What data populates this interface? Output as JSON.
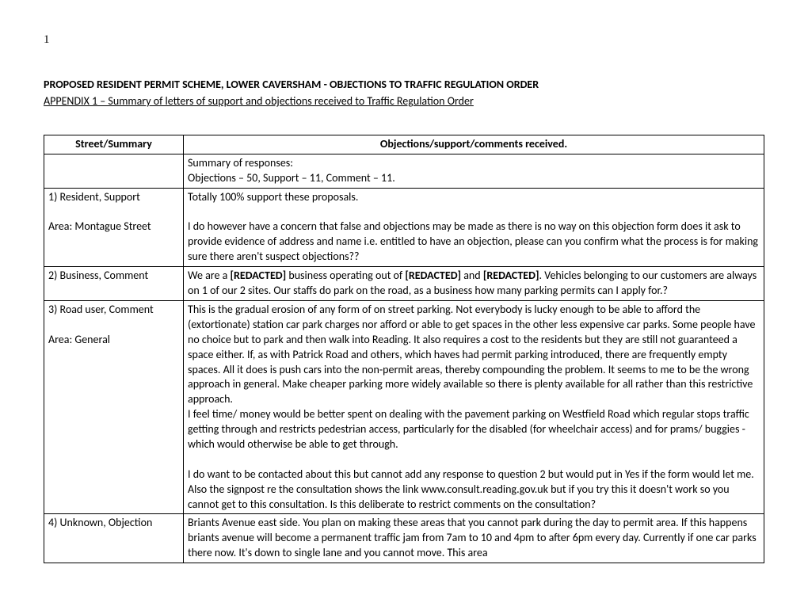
{
  "page_number": "1",
  "title": "PROPOSED RESIDENT PERMIT SCHEME, LOWER CAVERSHAM  - OBJECTIONS TO TRAFFIC REGULATION ORDER",
  "subtitle": "APPENDIX 1 – Summary of letters of support and objections received to Traffic Regulation Order",
  "table": {
    "headers": {
      "left": "Street/Summary",
      "right": "Objections/support/comments received."
    },
    "rows": [
      {
        "left": "",
        "right_p1": "Summary of responses:",
        "right_p2": "Objections – 50, Support – 11, Comment – 11."
      },
      {
        "left_p1": "1) Resident, Support",
        "left_p2": "Area: Montague Street",
        "right_p1": "Totally 100% support these proposals.",
        "right_p2": "I do however have a concern that false and objections may be made as there is no way on this objection form does it ask to provide evidence of address and name i.e. entitled to have an objection, please can you confirm what the process is for making sure there aren't suspect objections??"
      },
      {
        "left": "2) Business, Comment",
        "right_pre": "We are a ",
        "right_b1": "[REDACTED]",
        "right_mid1": " business operating out of ",
        "right_b2": "[REDACTED]",
        "right_mid2": " and ",
        "right_b3": "[REDACTED]",
        "right_post": ". Vehicles belonging to our customers are always on 1 of our 2 sites. Our staffs do park on the road, as a business how many parking permits can I apply for.?"
      },
      {
        "left_p1": "3) Road user, Comment",
        "left_p2": "Area: General",
        "right_p1": "This is the gradual erosion of any form of on street parking. Not everybody is lucky enough to be able to afford the (extortionate) station car park charges nor afford or able to get spaces in the other less expensive car parks. Some people have no choice but to park and then walk into Reading. It also requires a cost to the residents but they are still not guaranteed a space either. If, as with Patrick Road and others, which haves had permit parking introduced, there are frequently empty spaces. All it does is push cars into the non-permit areas, thereby compounding the problem. It seems to me to be the wrong approach in general. Make cheaper parking more widely available so there is plenty available for all rather than this restrictive approach.",
        "right_p2": "I feel time/ money would be better spent on dealing with the pavement parking  on Westfield Road which regular stops traffic getting through and restricts pedestrian access, particularly for the disabled (for wheelchair access) and for prams/ buggies - which would otherwise be able to get through.",
        "right_p3": "I do want to be contacted about this but cannot add any response to question 2 but would put in Yes if the form would let me. Also the signpost re the consultation shows the link www.consult.reading.gov.uk but if you try this it doesn't work so you cannot get to this consultation. Is this deliberate to restrict comments on the consultation?"
      },
      {
        "left": "4) Unknown, Objection",
        "right": "Briants Avenue east side. You plan on making these areas that you cannot park during the day to permit area. If this happens briants avenue will become a permanent traffic jam from 7am to 10 and 4pm to after 6pm every day. Currently if one car parks there now. It's down to single lane and you cannot move. This area"
      }
    ]
  }
}
